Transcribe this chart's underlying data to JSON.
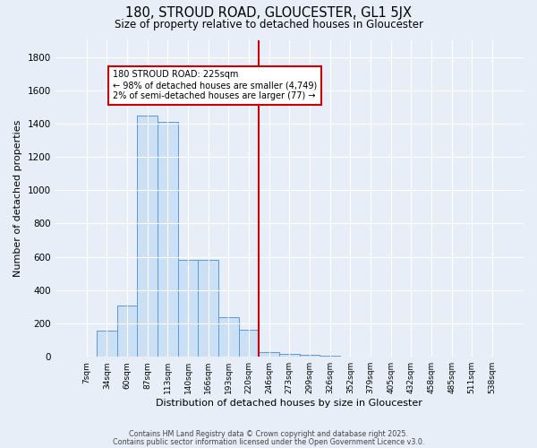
{
  "title_line1": "180, STROUD ROAD, GLOUCESTER, GL1 5JX",
  "title_line2": "Size of property relative to detached houses in Gloucester",
  "xlabel": "Distribution of detached houses by size in Gloucester",
  "ylabel": "Number of detached properties",
  "bar_color": "#cce0f5",
  "bar_edge_color": "#5b9bd5",
  "annotation_box_color": "#cc0000",
  "vline_color": "#cc0000",
  "categories": [
    "7sqm",
    "34sqm",
    "60sqm",
    "87sqm",
    "113sqm",
    "140sqm",
    "166sqm",
    "193sqm",
    "220sqm",
    "246sqm",
    "273sqm",
    "299sqm",
    "326sqm",
    "352sqm",
    "379sqm",
    "405sqm",
    "432sqm",
    "458sqm",
    "485sqm",
    "511sqm",
    "538sqm"
  ],
  "values": [
    0,
    155,
    310,
    1450,
    1410,
    580,
    580,
    240,
    160,
    30,
    15,
    10,
    5,
    0,
    0,
    0,
    0,
    0,
    0,
    0,
    0
  ],
  "ylim": [
    0,
    1900
  ],
  "yticks": [
    0,
    200,
    400,
    600,
    800,
    1000,
    1200,
    1400,
    1600,
    1800
  ],
  "subject_label": "180 STROUD ROAD: 225sqm",
  "annotation_line1": "← 98% of detached houses are smaller (4,749)",
  "annotation_line2": "2% of semi-detached houses are larger (77) →",
  "vline_x_index": 8.5,
  "footer_line1": "Contains HM Land Registry data © Crown copyright and database right 2025.",
  "footer_line2": "Contains public sector information licensed under the Open Government Licence v3.0.",
  "background_color": "#e8eef8",
  "grid_color": "#ffffff",
  "fig_width": 6.0,
  "fig_height": 5.0
}
